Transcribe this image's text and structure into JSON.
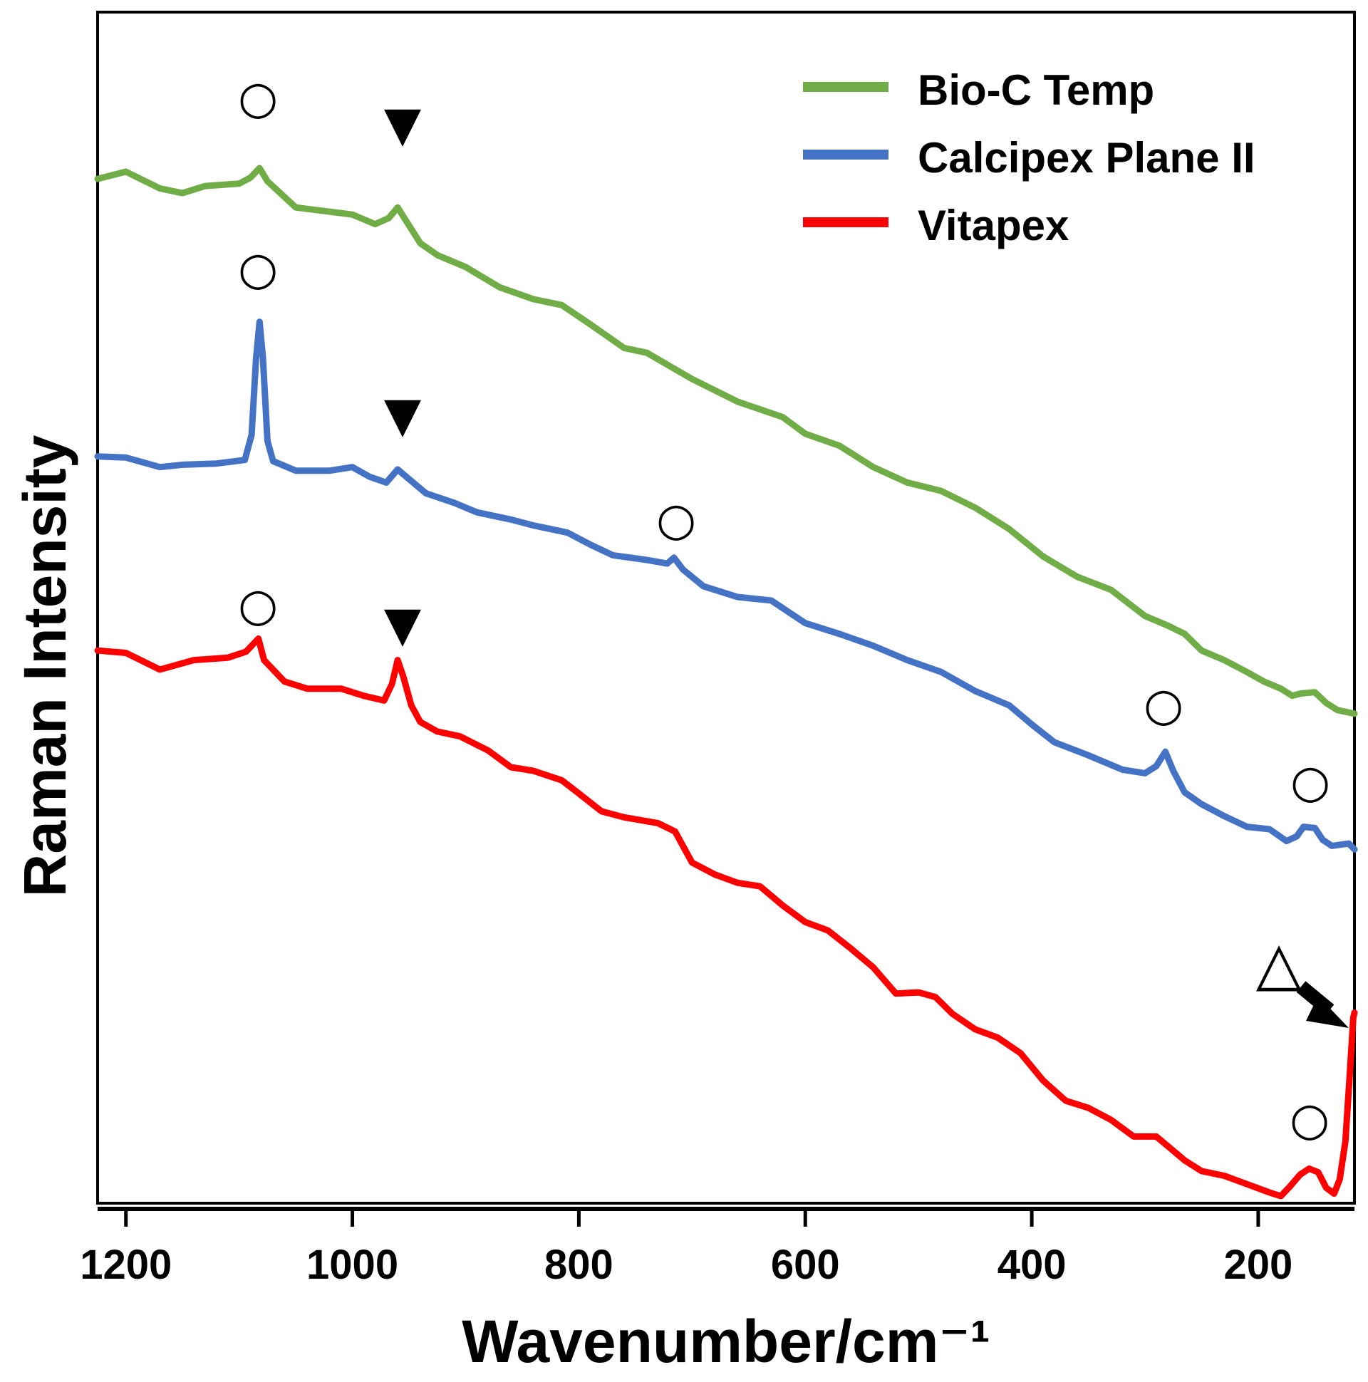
{
  "chart_data": {
    "type": "line",
    "title": "",
    "xlabel": "Wavenumber/cm⁻¹",
    "ylabel": "Raman Intensity",
    "xlim": [
      1225,
      115
    ],
    "ylim": [
      0,
      100
    ],
    "x_ticks": [
      1200,
      1000,
      800,
      600,
      400,
      200
    ],
    "y_ticks_shown": false,
    "grid": false,
    "legend_position": "top-right",
    "series": [
      {
        "name": "Bio-C Temp",
        "color": "#70AD47",
        "points": [
          [
            1225,
            86.0
          ],
          [
            1200,
            86.6
          ],
          [
            1170,
            85.2
          ],
          [
            1150,
            84.8
          ],
          [
            1130,
            85.4
          ],
          [
            1100,
            85.6
          ],
          [
            1090,
            86.1
          ],
          [
            1082,
            86.9
          ],
          [
            1075,
            85.8
          ],
          [
            1050,
            83.6
          ],
          [
            1000,
            83.0
          ],
          [
            980,
            82.2
          ],
          [
            968,
            82.7
          ],
          [
            960,
            83.6
          ],
          [
            952,
            82.4
          ],
          [
            940,
            80.6
          ],
          [
            925,
            79.6
          ],
          [
            900,
            78.6
          ],
          [
            870,
            76.9
          ],
          [
            840,
            75.9
          ],
          [
            815,
            75.4
          ],
          [
            790,
            73.8
          ],
          [
            760,
            71.8
          ],
          [
            740,
            71.4
          ],
          [
            720,
            70.3
          ],
          [
            700,
            69.2
          ],
          [
            660,
            67.3
          ],
          [
            620,
            66.0
          ],
          [
            600,
            64.6
          ],
          [
            570,
            63.6
          ],
          [
            540,
            61.8
          ],
          [
            510,
            60.5
          ],
          [
            480,
            59.8
          ],
          [
            450,
            58.4
          ],
          [
            420,
            56.6
          ],
          [
            390,
            54.3
          ],
          [
            360,
            52.6
          ],
          [
            330,
            51.5
          ],
          [
            300,
            49.3
          ],
          [
            280,
            48.5
          ],
          [
            265,
            47.8
          ],
          [
            250,
            46.4
          ],
          [
            230,
            45.6
          ],
          [
            210,
            44.6
          ],
          [
            195,
            43.8
          ],
          [
            180,
            43.2
          ],
          [
            170,
            42.6
          ],
          [
            162,
            42.8
          ],
          [
            150,
            42.9
          ],
          [
            140,
            42.0
          ],
          [
            130,
            41.4
          ],
          [
            115,
            41.1
          ]
        ]
      },
      {
        "name": "Calcipex Plane II",
        "color": "#4472C4",
        "points": [
          [
            1225,
            62.7
          ],
          [
            1200,
            62.6
          ],
          [
            1170,
            61.8
          ],
          [
            1150,
            62.0
          ],
          [
            1120,
            62.1
          ],
          [
            1095,
            62.4
          ],
          [
            1089,
            64.5
          ],
          [
            1085,
            71.0
          ],
          [
            1082,
            74.0
          ],
          [
            1079,
            71.0
          ],
          [
            1075,
            64.0
          ],
          [
            1070,
            62.3
          ],
          [
            1050,
            61.5
          ],
          [
            1020,
            61.5
          ],
          [
            1000,
            61.8
          ],
          [
            985,
            61.0
          ],
          [
            970,
            60.5
          ],
          [
            960,
            61.6
          ],
          [
            950,
            60.8
          ],
          [
            935,
            59.6
          ],
          [
            910,
            58.8
          ],
          [
            890,
            58.0
          ],
          [
            860,
            57.4
          ],
          [
            840,
            56.9
          ],
          [
            810,
            56.3
          ],
          [
            790,
            55.3
          ],
          [
            770,
            54.4
          ],
          [
            740,
            54.0
          ],
          [
            722,
            53.7
          ],
          [
            716,
            54.2
          ],
          [
            708,
            53.2
          ],
          [
            690,
            51.8
          ],
          [
            660,
            50.9
          ],
          [
            630,
            50.6
          ],
          [
            600,
            48.7
          ],
          [
            570,
            47.8
          ],
          [
            540,
            46.8
          ],
          [
            510,
            45.6
          ],
          [
            480,
            44.6
          ],
          [
            450,
            43.0
          ],
          [
            420,
            41.8
          ],
          [
            400,
            40.2
          ],
          [
            380,
            38.7
          ],
          [
            350,
            37.6
          ],
          [
            320,
            36.4
          ],
          [
            300,
            36.1
          ],
          [
            290,
            36.7
          ],
          [
            282,
            37.9
          ],
          [
            275,
            36.3
          ],
          [
            265,
            34.5
          ],
          [
            250,
            33.5
          ],
          [
            230,
            32.5
          ],
          [
            210,
            31.6
          ],
          [
            190,
            31.4
          ],
          [
            175,
            30.4
          ],
          [
            166,
            30.8
          ],
          [
            160,
            31.6
          ],
          [
            150,
            31.5
          ],
          [
            143,
            30.5
          ],
          [
            135,
            30.0
          ],
          [
            120,
            30.2
          ],
          [
            115,
            29.7
          ]
        ]
      },
      {
        "name": "Vitapex",
        "color": "#FF0000",
        "points": [
          [
            1225,
            46.4
          ],
          [
            1200,
            46.2
          ],
          [
            1170,
            44.8
          ],
          [
            1140,
            45.6
          ],
          [
            1110,
            45.8
          ],
          [
            1094,
            46.3
          ],
          [
            1087,
            47.0
          ],
          [
            1083,
            47.4
          ],
          [
            1078,
            45.6
          ],
          [
            1060,
            43.8
          ],
          [
            1040,
            43.2
          ],
          [
            1010,
            43.2
          ],
          [
            990,
            42.6
          ],
          [
            972,
            42.2
          ],
          [
            965,
            43.6
          ],
          [
            960,
            45.6
          ],
          [
            955,
            44.2
          ],
          [
            948,
            41.8
          ],
          [
            940,
            40.4
          ],
          [
            925,
            39.6
          ],
          [
            905,
            39.2
          ],
          [
            880,
            38.0
          ],
          [
            860,
            36.6
          ],
          [
            840,
            36.3
          ],
          [
            815,
            35.5
          ],
          [
            800,
            34.4
          ],
          [
            780,
            32.9
          ],
          [
            760,
            32.4
          ],
          [
            730,
            31.9
          ],
          [
            715,
            31.2
          ],
          [
            700,
            28.6
          ],
          [
            680,
            27.6
          ],
          [
            660,
            26.9
          ],
          [
            640,
            26.6
          ],
          [
            620,
            25.0
          ],
          [
            600,
            23.6
          ],
          [
            580,
            22.9
          ],
          [
            560,
            21.4
          ],
          [
            540,
            19.8
          ],
          [
            520,
            17.6
          ],
          [
            500,
            17.7
          ],
          [
            485,
            17.3
          ],
          [
            470,
            15.9
          ],
          [
            450,
            14.6
          ],
          [
            430,
            13.9
          ],
          [
            410,
            12.6
          ],
          [
            390,
            10.3
          ],
          [
            370,
            8.6
          ],
          [
            350,
            8.0
          ],
          [
            330,
            7.0
          ],
          [
            310,
            5.6
          ],
          [
            290,
            5.6
          ],
          [
            280,
            4.8
          ],
          [
            265,
            3.6
          ],
          [
            250,
            2.7
          ],
          [
            230,
            2.3
          ],
          [
            210,
            1.6
          ],
          [
            190,
            0.9
          ],
          [
            180,
            0.6
          ],
          [
            172,
            1.4
          ],
          [
            163,
            2.4
          ],
          [
            155,
            2.9
          ],
          [
            147,
            2.6
          ],
          [
            140,
            1.3
          ],
          [
            133,
            0.8
          ],
          [
            128,
            2.0
          ],
          [
            123,
            5.2
          ],
          [
            119,
            11.0
          ],
          [
            116,
            15.6
          ],
          [
            115,
            16.0
          ]
        ]
      }
    ],
    "annotations": [
      {
        "symbol": "○",
        "name": "circle-marker-bio-c-1085"
      },
      {
        "symbol": "▼",
        "name": "triangle-marker-bio-c-960"
      },
      {
        "symbol": "○",
        "name": "circle-marker-calcipex-1085"
      },
      {
        "symbol": "▼",
        "name": "triangle-marker-calcipex-960"
      },
      {
        "symbol": "○",
        "name": "circle-marker-calcipex-715"
      },
      {
        "symbol": "○",
        "name": "circle-marker-calcipex-280"
      },
      {
        "symbol": "○",
        "name": "circle-marker-calcipex-155"
      },
      {
        "symbol": "○",
        "name": "circle-marker-vitapex-1085"
      },
      {
        "symbol": "▼",
        "name": "triangle-marker-vitapex-960"
      },
      {
        "symbol": "○",
        "name": "circle-marker-vitapex-155"
      },
      {
        "symbol": "△",
        "name": "open-triangle-marker-vitapex"
      }
    ]
  }
}
